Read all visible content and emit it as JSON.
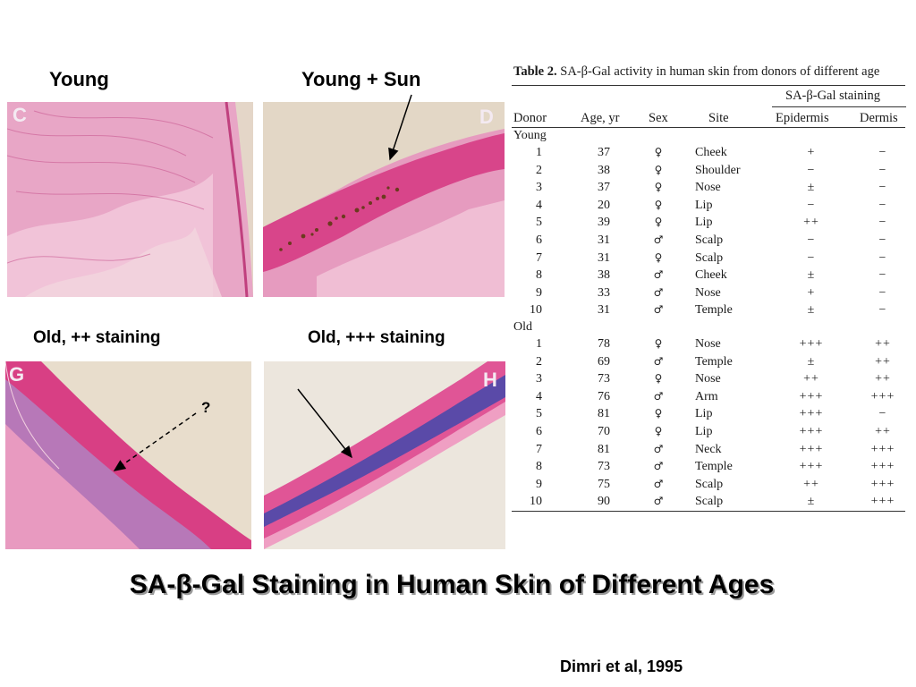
{
  "panels": {
    "c": {
      "letter": "C"
    },
    "d": {
      "letter": "D"
    },
    "g": {
      "letter": "G"
    },
    "h": {
      "letter": "H"
    }
  },
  "captions": {
    "young": "Young",
    "young_sun": "Young + Sun",
    "old_2": "Old, ++ staining",
    "old_3": "Old, +++ staining"
  },
  "question_mark": "?",
  "table": {
    "caption_number": "Table 2.",
    "caption_text": "SA-β-Gal activity in human skin from donors of different age",
    "group_header": "SA-β-Gal staining",
    "columns": [
      "Donor",
      "Age, yr",
      "Sex",
      "Site",
      "Epidermis",
      "Dermis"
    ],
    "groups": [
      {
        "name": "Young",
        "rows": [
          [
            "1",
            "37",
            "♀",
            "Cheek",
            "+",
            "−"
          ],
          [
            "2",
            "38",
            "♀",
            "Shoulder",
            "−",
            "−"
          ],
          [
            "3",
            "37",
            "♀",
            "Nose",
            "±",
            "−"
          ],
          [
            "4",
            "20",
            "♀",
            "Lip",
            "−",
            "−"
          ],
          [
            "5",
            "39",
            "♀",
            "Lip",
            "++",
            "−"
          ],
          [
            "6",
            "31",
            "♂",
            "Scalp",
            "−",
            "−"
          ],
          [
            "7",
            "31",
            "♀",
            "Scalp",
            "−",
            "−"
          ],
          [
            "8",
            "38",
            "♂",
            "Cheek",
            "±",
            "−"
          ],
          [
            "9",
            "33",
            "♂",
            "Nose",
            "+",
            "−"
          ],
          [
            "10",
            "31",
            "♂",
            "Temple",
            "±",
            "−"
          ]
        ]
      },
      {
        "name": "Old",
        "rows": [
          [
            "1",
            "78",
            "♀",
            "Nose",
            "+++",
            "++"
          ],
          [
            "2",
            "69",
            "♂",
            "Temple",
            "±",
            "++"
          ],
          [
            "3",
            "73",
            "♀",
            "Nose",
            "++",
            "++"
          ],
          [
            "4",
            "76",
            "♂",
            "Arm",
            "+++",
            "+++"
          ],
          [
            "5",
            "81",
            "♀",
            "Lip",
            "+++",
            "−"
          ],
          [
            "6",
            "70",
            "♀",
            "Lip",
            "+++",
            "++"
          ],
          [
            "7",
            "81",
            "♂",
            "Neck",
            "+++",
            "+++"
          ],
          [
            "8",
            "73",
            "♂",
            "Temple",
            "+++",
            "+++"
          ],
          [
            "9",
            "75",
            "♂",
            "Scalp",
            "++",
            "+++"
          ],
          [
            "10",
            "90",
            "♂",
            "Scalp",
            "±",
            "+++"
          ]
        ]
      }
    ]
  },
  "title": "SA-β-Gal Staining in Human Skin of Different Ages",
  "citation": "Dimri et al, 1995"
}
